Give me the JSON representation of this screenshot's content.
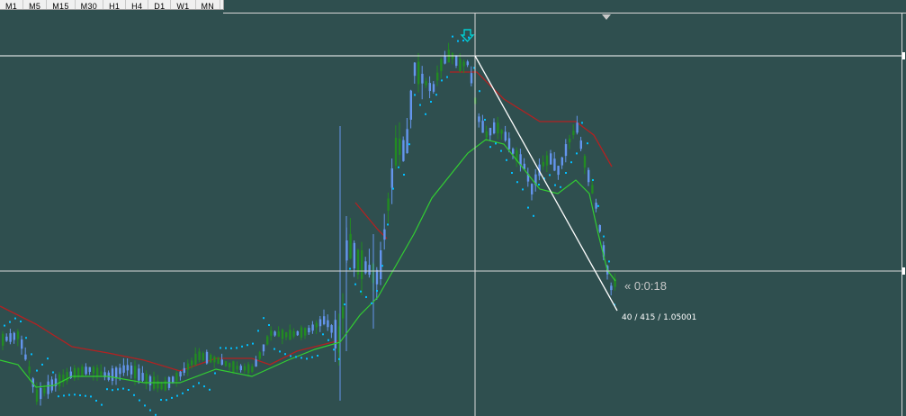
{
  "timeframes": [
    "M1",
    "M5",
    "M15",
    "M30",
    "H1",
    "H4",
    "D1",
    "W1",
    "MN"
  ],
  "timer_label": "« 0:0:18",
  "crosshair_readout": "40 / 415 / 1.05001",
  "colors": {
    "background": "#2f4f4f",
    "bull_candle": "#6495ed",
    "bear_candle": "#228b22",
    "ma_slow": "#b22222",
    "ma_fast": "#32cd32",
    "sar_dots": "#00bfff",
    "crosshair": "#ffffff",
    "arrow": "#00ced1"
  },
  "icons": {
    "signal_arrow": "down-arrow-icon",
    "shift_marker": "triangle-down-icon",
    "timer": "double-chevron-left-icon"
  }
}
